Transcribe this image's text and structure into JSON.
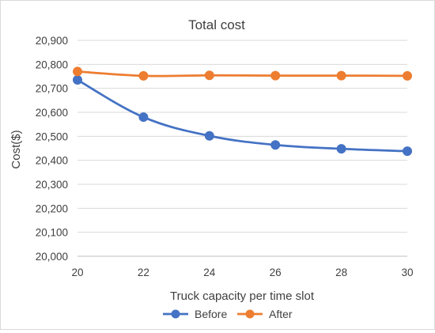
{
  "chart_data": {
    "type": "line",
    "title": "Total cost",
    "xlabel": "Truck capacity per time slot",
    "ylabel": "Cost($)",
    "x": [
      20,
      22,
      24,
      26,
      28,
      30
    ],
    "x_tick_labels": [
      "20",
      "22",
      "24",
      "26",
      "28",
      "30"
    ],
    "xlim": [
      20,
      30
    ],
    "ylim": [
      20000,
      20900
    ],
    "y_ticks": [
      20000,
      20100,
      20200,
      20300,
      20400,
      20500,
      20600,
      20700,
      20800,
      20900
    ],
    "y_tick_labels": [
      "20,000",
      "20,100",
      "20,200",
      "20,300",
      "20,400",
      "20,500",
      "20,600",
      "20,700",
      "20,800",
      "20,900"
    ],
    "grid": true,
    "legend_position": "bottom",
    "series": [
      {
        "name": "Before",
        "color": "#4472c4",
        "values": [
          20735,
          20580,
          20502,
          20464,
          20448,
          20438
        ]
      },
      {
        "name": "After",
        "color": "#ed7d31",
        "values": [
          20770,
          20752,
          20754,
          20753,
          20753,
          20752
        ]
      }
    ]
  }
}
